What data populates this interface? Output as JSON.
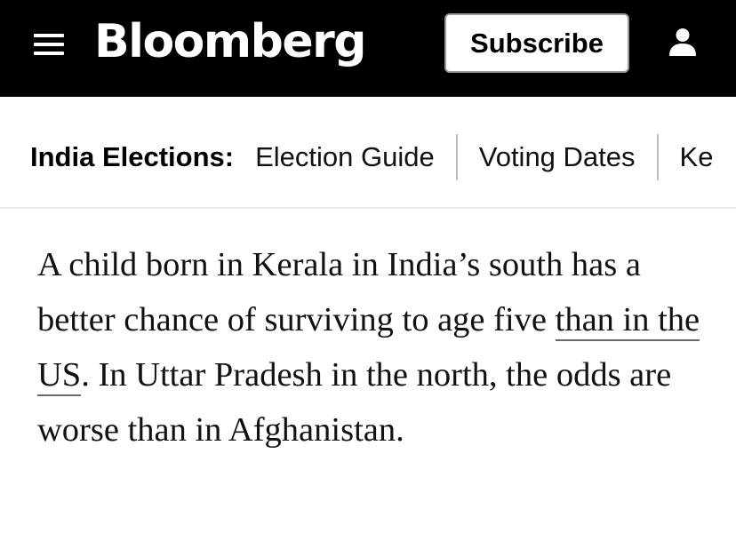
{
  "header": {
    "logo": "Bloomberg",
    "subscribe_label": "Subscribe",
    "menu_icon": "hamburger-menu-icon",
    "account_icon": "person-icon",
    "colors": {
      "background": "#000000",
      "text": "#ffffff"
    }
  },
  "nav": {
    "label": "India Elections:",
    "items": [
      {
        "label": "Election Guide"
      },
      {
        "label": "Voting Dates"
      },
      {
        "label": "Ke"
      }
    ]
  },
  "article": {
    "before_link": "A child born in Kerala in India’s south has a better chance of surviving to age five ",
    "link_text": "than in the US",
    "after_link": ". In Uttar Pradesh in the north, the odds are worse than in Afghanistan."
  }
}
